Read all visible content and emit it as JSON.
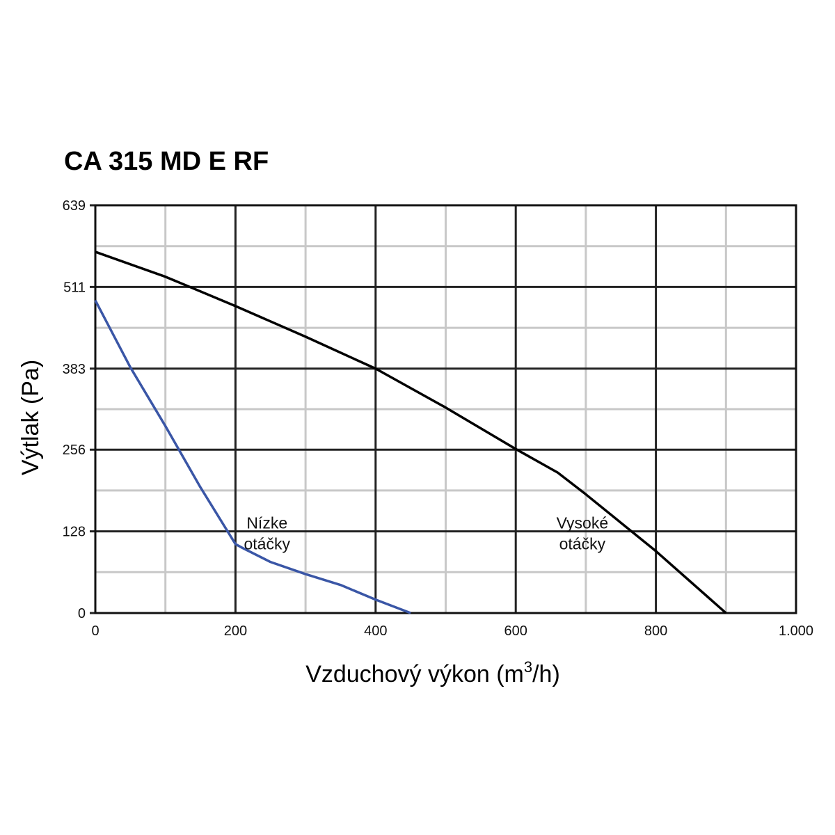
{
  "chart_data": {
    "type": "line",
    "title": "CA 315 MD E RF",
    "xlabel": "Vzduchový výkon (m",
    "xlabel_sup": "3",
    "xlabel_end": "/h)",
    "ylabel": "Výtlak (Pa)",
    "xlim": [
      0,
      1000
    ],
    "ylim": [
      0,
      639
    ],
    "x_ticks": [
      0,
      200,
      400,
      600,
      800,
      1000
    ],
    "x_tick_labels": [
      "0",
      "200",
      "400",
      "600",
      "800",
      "1.000"
    ],
    "y_ticks": [
      0,
      128,
      256,
      383,
      511,
      639
    ],
    "y_tick_labels": [
      "0",
      "128",
      "256",
      "383",
      "511",
      "639"
    ],
    "grid": true,
    "series": [
      {
        "name": "Vysoké otáčky",
        "color": "#000000",
        "label_lines": [
          "Vysoké",
          "otáčky"
        ],
        "x": [
          0,
          100,
          200,
          300,
          400,
          500,
          600,
          660,
          700,
          800,
          900
        ],
        "y": [
          566,
          527,
          481,
          433,
          383,
          322,
          257,
          220,
          186,
          97,
          0
        ]
      },
      {
        "name": "Nízke otáčky",
        "color": "#3a56a6",
        "label_lines": [
          "Nízke",
          "otáčky"
        ],
        "x": [
          0,
          50,
          100,
          150,
          200,
          210,
          250,
          300,
          350,
          400,
          450
        ],
        "y": [
          490,
          385,
          293,
          197,
          108,
          102,
          80,
          61,
          44,
          21,
          0
        ]
      }
    ]
  }
}
